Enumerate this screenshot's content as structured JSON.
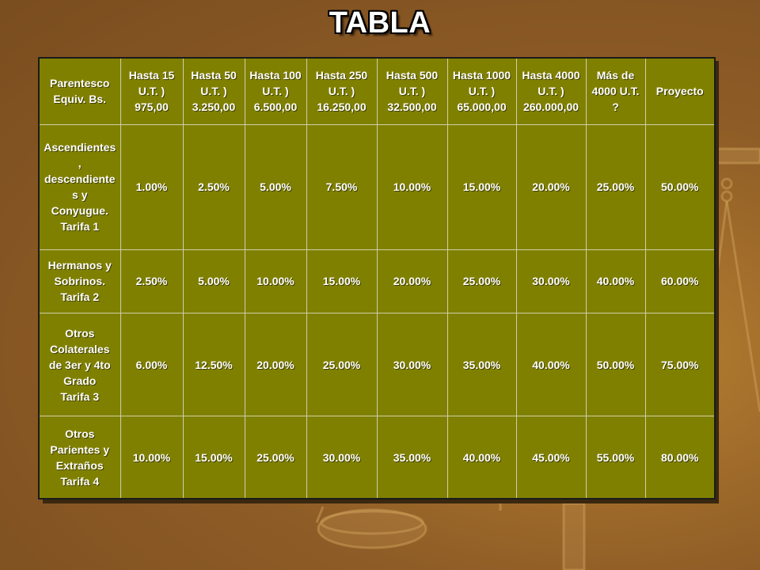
{
  "title": "TABLA",
  "table": {
    "headers": [
      "Parentesco\nEquiv. Bs.",
      "Hasta 15\nU.T. )\n975,00",
      "Hasta 50\nU.T. )\n3.250,00",
      "Hasta 100\nU.T. )\n6.500,00",
      "Hasta 250\nU.T. )\n16.250,00",
      "Hasta 500\nU.T. )\n32.500,00",
      "Hasta 1000\nU.T. )\n65.000,00",
      "Hasta 4000\nU.T. )\n260.000,00",
      "Más de\n4000 U.T.\n?",
      "Proyecto"
    ],
    "rows": [
      {
        "label": "Ascendientes\n,\ndescendiente\ns y\nConyugue.\nTarifa 1",
        "values": [
          "1.00%",
          "2.50%",
          "5.00%",
          "7.50%",
          "10.00%",
          "15.00%",
          "20.00%",
          "25.00%",
          "50.00%"
        ]
      },
      {
        "label": "Hermanos y\nSobrinos.\nTarifa 2",
        "values": [
          "2.50%",
          "5.00%",
          "10.00%",
          "15.00%",
          "20.00%",
          "25.00%",
          "30.00%",
          "40.00%",
          "60.00%"
        ]
      },
      {
        "label": "Otros\nColaterales\nde 3er y 4to\nGrado\nTarifa 3",
        "values": [
          "6.00%",
          "12.50%",
          "20.00%",
          "25.00%",
          "30.00%",
          "35.00%",
          "40.00%",
          "50.00%",
          "75.00%"
        ]
      },
      {
        "label": "Otros\nParientes y\nExtraños\nTarifa 4",
        "values": [
          "10.00%",
          "15.00%",
          "25.00%",
          "30.00%",
          "35.00%",
          "40.00%",
          "45.00%",
          "55.00%",
          "80.00%"
        ]
      }
    ]
  },
  "colors": {
    "table_fill": "#808000",
    "background": "#8e5c26",
    "text": "#ffffff"
  }
}
